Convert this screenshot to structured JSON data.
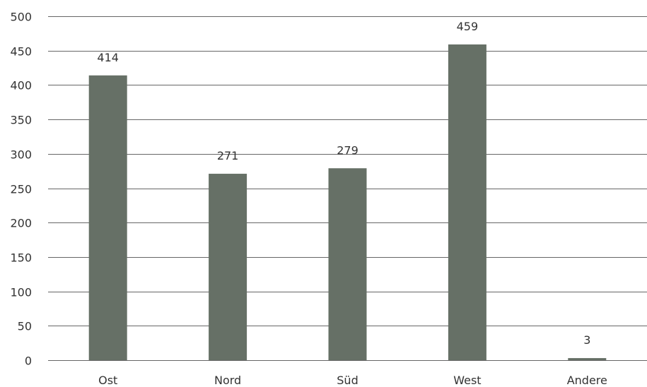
{
  "chart_data": {
    "type": "bar",
    "title": "",
    "xlabel": "",
    "ylabel": "",
    "categories": [
      "Ost",
      "Nord",
      "Süd",
      "West",
      "Andere"
    ],
    "values": [
      414,
      271,
      279,
      459,
      3
    ],
    "data_labels": [
      "414",
      "271",
      "279",
      "459",
      "3"
    ],
    "ylim": [
      0,
      500
    ],
    "yticks": [
      0,
      50,
      100,
      150,
      200,
      250,
      300,
      350,
      400,
      450,
      500
    ],
    "ytick_labels": [
      "0",
      "50",
      "100",
      "150",
      "200",
      "250",
      "300",
      "350",
      "400",
      "450",
      "500"
    ],
    "grid": true,
    "legend": "none",
    "bar_color": "#667066",
    "grid_color": "#666666",
    "text_color": "#333333"
  }
}
